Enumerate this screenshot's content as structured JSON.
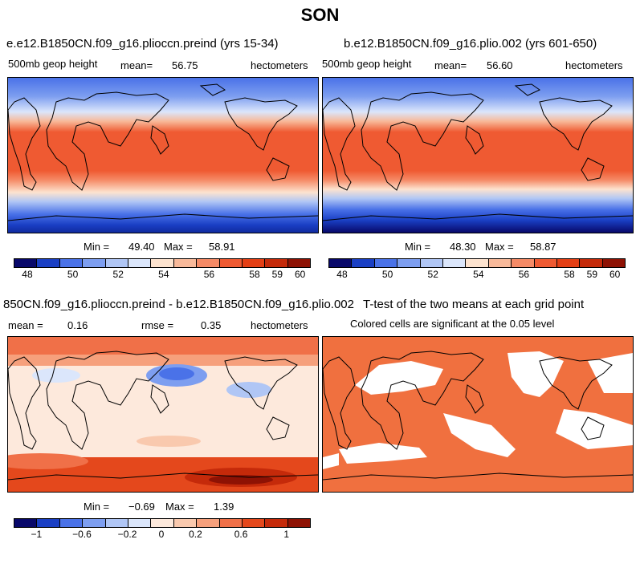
{
  "figure": {
    "season": "SON"
  },
  "panel_a": {
    "title": "e.e12.B1850CN.f09_g16.plioccn.preind (yrs 15-34)",
    "variable": "500mb geop height",
    "mean_label": "mean=",
    "mean_value": "56.75",
    "units": "hectometers",
    "min_label": "Min =",
    "min_value": "49.40",
    "max_label": "Max =",
    "max_value": "58.91",
    "colorbar_ticks": [
      "48",
      "50",
      "52",
      "54",
      "56",
      "58",
      "59",
      "60"
    ]
  },
  "panel_b": {
    "title": "b.e12.B1850CN.f09_g16.plio.002 (yrs 601-650)",
    "variable": "500mb geop height",
    "mean_label": "mean=",
    "mean_value": "56.60",
    "units": "hectometers",
    "min_label": "Min =",
    "min_value": "48.30",
    "max_label": "Max =",
    "max_value": "58.87",
    "colorbar_ticks": [
      "48",
      "50",
      "52",
      "54",
      "56",
      "58",
      "59",
      "60"
    ]
  },
  "panel_c": {
    "title": "850CN.f09_g16.plioccn.preind - b.e12.B1850CN.f09_g16.plio.002",
    "mean_label": "mean =",
    "mean_value": "0.16",
    "rmse_label": "rmse =",
    "rmse_value": "0.35",
    "units": "hectometers",
    "min_label": "Min =",
    "min_value": "−0.69",
    "max_label": "Max =",
    "max_value": "1.39",
    "colorbar_ticks": [
      "−1",
      "−0.6",
      "−0.2",
      "0",
      "0.2",
      "0.6",
      "1"
    ]
  },
  "panel_d": {
    "title": "T-test of the two means at each grid point",
    "subtitle": "Colored cells are significant at the 0.05 level"
  },
  "colors": {
    "abs_scale": [
      "#08086a",
      "#1a3fc4",
      "#4a72e8",
      "#7d9ef0",
      "#b0c6f5",
      "#dbe6fb",
      "#fde3cf",
      "#f8b99a",
      "#f58a66",
      "#ef5a32",
      "#e43f15",
      "#c52a0a",
      "#8e1204"
    ],
    "diff_scale": [
      "#08086a",
      "#1a3fc4",
      "#4a72e8",
      "#7d9ef0",
      "#b0c6f5",
      "#dbe6fb",
      "#fde9dc",
      "#f9c9ae",
      "#f6a07c",
      "#f07048",
      "#e4481c",
      "#c52a0a",
      "#8e1204"
    ],
    "significant": "#f0703f",
    "coast": "#000000"
  }
}
